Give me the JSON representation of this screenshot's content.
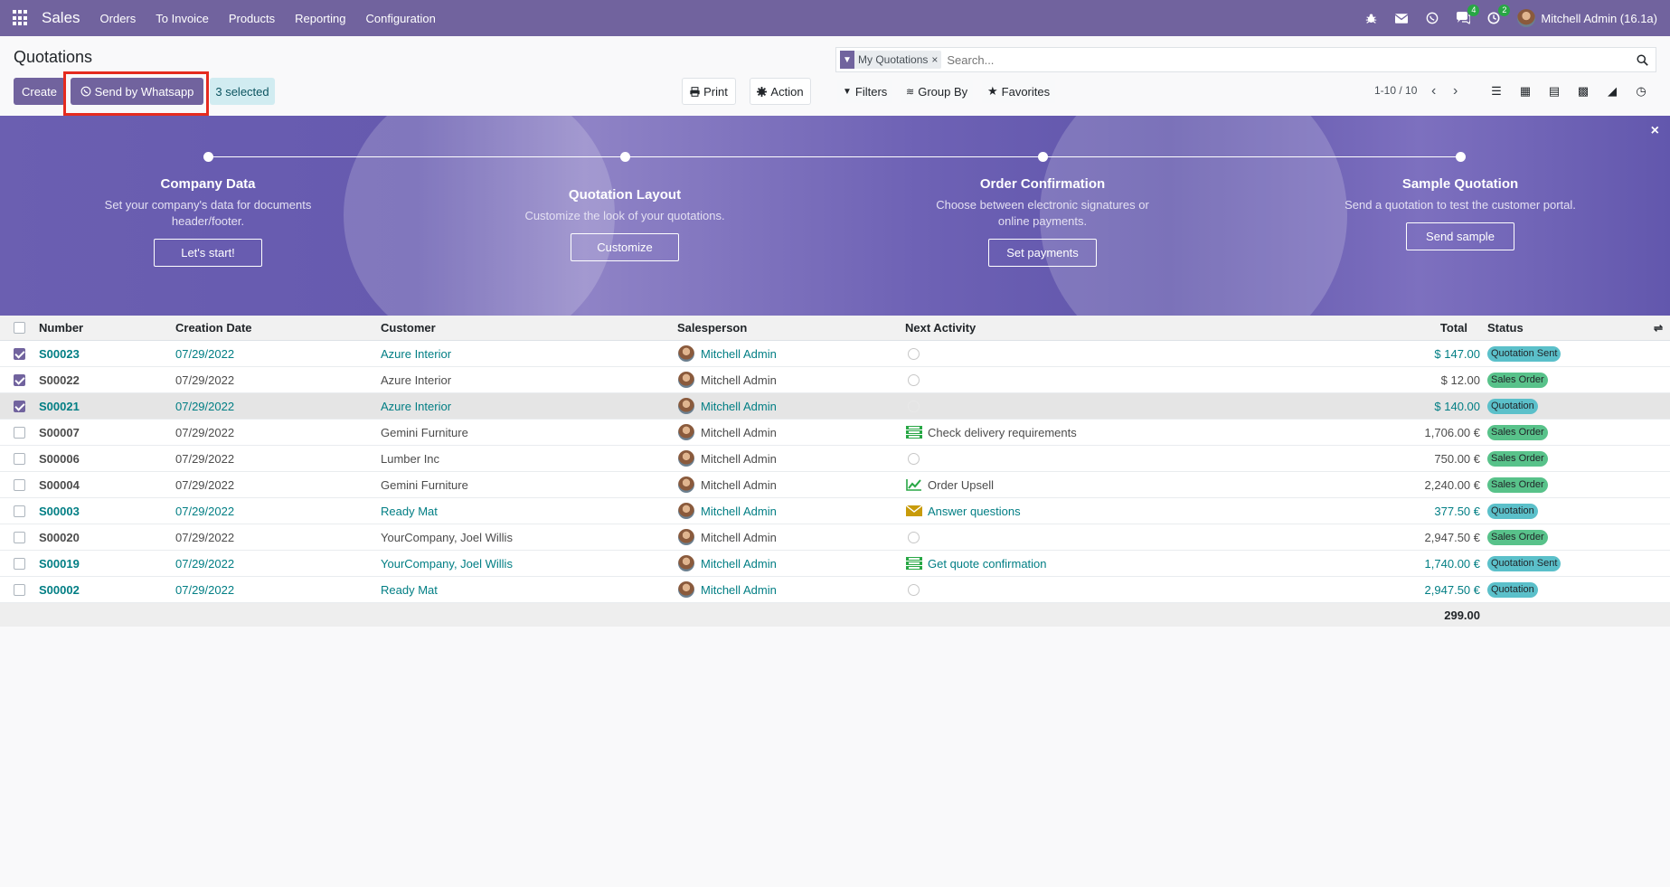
{
  "topbar": {
    "brand": "Sales",
    "menu": [
      "Orders",
      "To Invoice",
      "Products",
      "Reporting",
      "Configuration"
    ],
    "messages_badge": "4",
    "activities_badge": "2",
    "user": "Mitchell Admin (16.1a)"
  },
  "control": {
    "title": "Quotations",
    "create": "Create",
    "send_whatsapp": "Send by Whatsapp",
    "selected": "3 selected",
    "print": "Print",
    "action": "Action",
    "facet": "My Quotations",
    "search_placeholder": "Search...",
    "filters": "Filters",
    "group_by": "Group By",
    "favorites": "Favorites",
    "pager": "1-10 / 10"
  },
  "banner": {
    "steps": [
      {
        "title": "Company Data",
        "desc": "Set your company's data for documents header/footer.",
        "button": "Let's start!"
      },
      {
        "title": "Quotation Layout",
        "desc": "Customize the look of your quotations.",
        "button": "Customize"
      },
      {
        "title": "Order Confirmation",
        "desc": "Choose between electronic signatures or online payments.",
        "button": "Set payments"
      },
      {
        "title": "Sample Quotation",
        "desc": "Send a quotation to test the customer portal.",
        "button": "Send sample"
      }
    ]
  },
  "table": {
    "headers": [
      "Number",
      "Creation Date",
      "Customer",
      "Salesperson",
      "Next Activity",
      "Total",
      "Status"
    ],
    "rows": [
      {
        "number": "S00023",
        "date": "07/29/2022",
        "customer": "Azure Interior",
        "salesperson": "Mitchell Admin",
        "activity": "",
        "total": "$ 147.00",
        "status": "Quotation Sent"
      },
      {
        "number": "S00022",
        "date": "07/29/2022",
        "customer": "Azure Interior",
        "salesperson": "Mitchell Admin",
        "activity": "",
        "total": "$ 12.00",
        "status": "Sales Order"
      },
      {
        "number": "S00021",
        "date": "07/29/2022",
        "customer": "Azure Interior",
        "salesperson": "Mitchell Admin",
        "activity": "",
        "total": "$ 140.00",
        "status": "Quotation"
      },
      {
        "number": "S00007",
        "date": "07/29/2022",
        "customer": "Gemini Furniture",
        "salesperson": "Mitchell Admin",
        "activity": "Check delivery requirements",
        "total": "1,706.00 €",
        "status": "Sales Order"
      },
      {
        "number": "S00006",
        "date": "07/29/2022",
        "customer": "Lumber Inc",
        "salesperson": "Mitchell Admin",
        "activity": "",
        "total": "750.00 €",
        "status": "Sales Order"
      },
      {
        "number": "S00004",
        "date": "07/29/2022",
        "customer": "Gemini Furniture",
        "salesperson": "Mitchell Admin",
        "activity": "Order Upsell",
        "total": "2,240.00 €",
        "status": "Sales Order"
      },
      {
        "number": "S00003",
        "date": "07/29/2022",
        "customer": "Ready Mat",
        "salesperson": "Mitchell Admin",
        "activity": "Answer questions",
        "total": "377.50 €",
        "status": "Quotation"
      },
      {
        "number": "S00020",
        "date": "07/29/2022",
        "customer": "YourCompany, Joel Willis",
        "salesperson": "Mitchell Admin",
        "activity": "",
        "total": "2,947.50 €",
        "status": "Sales Order"
      },
      {
        "number": "S00019",
        "date": "07/29/2022",
        "customer": "YourCompany, Joel Willis",
        "salesperson": "Mitchell Admin",
        "activity": "Get quote confirmation",
        "total": "1,740.00 €",
        "status": "Quotation Sent"
      },
      {
        "number": "S00002",
        "date": "07/29/2022",
        "customer": "Ready Mat",
        "salesperson": "Mitchell Admin",
        "activity": "",
        "total": "2,947.50 €",
        "status": "Quotation"
      }
    ],
    "footer_total": "299.00"
  }
}
